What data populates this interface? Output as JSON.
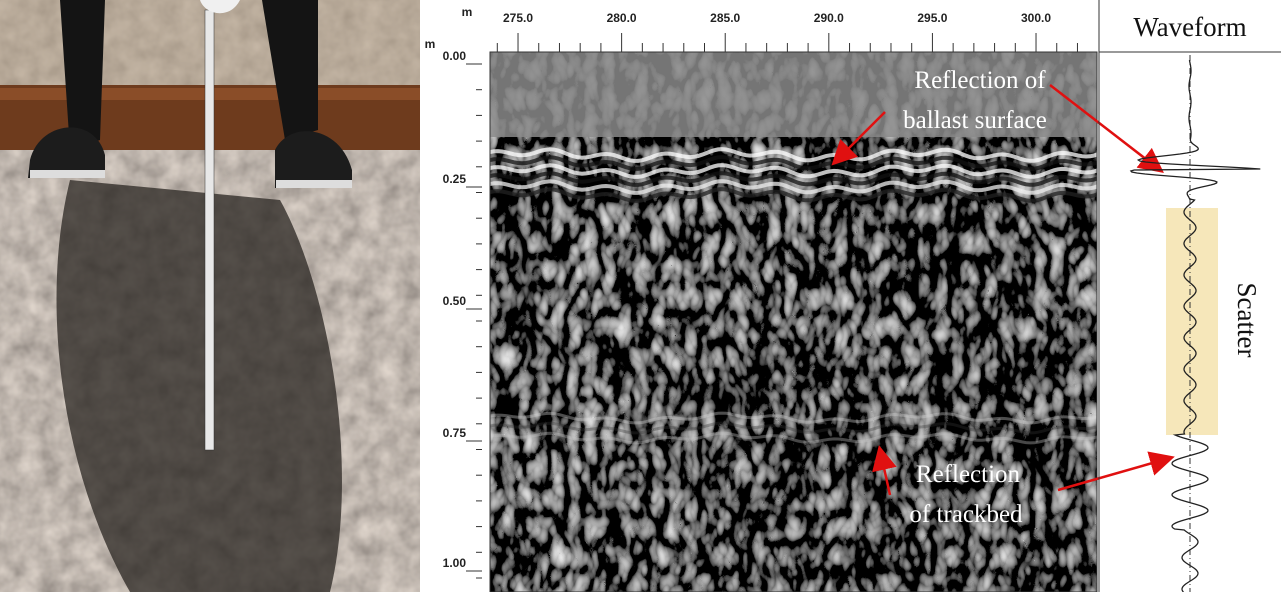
{
  "radargram": {
    "x_unit": "m",
    "y_unit": "m",
    "x_ticks": [
      "275.0",
      "280.0",
      "285.0",
      "290.0",
      "295.0",
      "300.0"
    ],
    "y_ticks": [
      "0.00",
      "0.25",
      "0.50",
      "0.75",
      "1.00"
    ]
  },
  "annotations": {
    "ballast": [
      "Reflection of",
      "ballast surface"
    ],
    "trackbed": [
      "Reflection",
      "of trackbed"
    ]
  },
  "waveform": {
    "title": "Waveform",
    "scatter_label": "Scatter"
  }
}
